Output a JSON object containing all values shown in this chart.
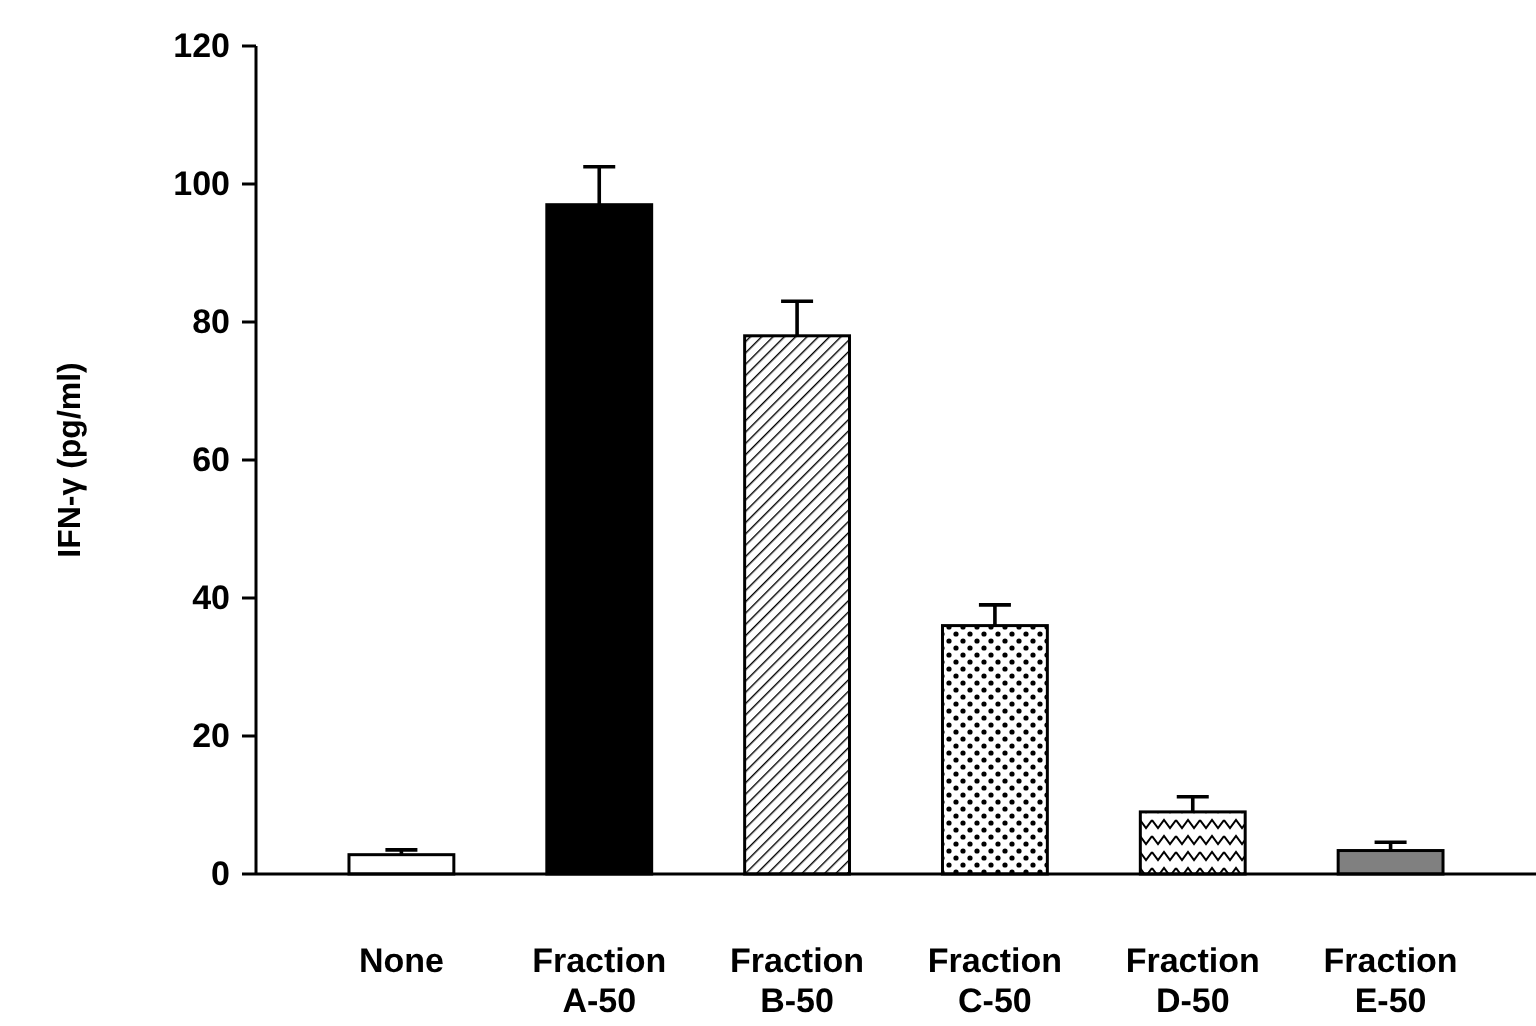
{
  "chart_data": {
    "type": "bar",
    "ylabel": "IFN-γ (pg/ml)",
    "categories": [
      "None",
      "Fraction A-50",
      "Fraction B-50",
      "Fraction C-50",
      "Fraction D-50",
      "Fraction E-50"
    ],
    "values": [
      2.8,
      97,
      78,
      36,
      9,
      3.4
    ],
    "errors": [
      0.7,
      5.5,
      5,
      3,
      2.2,
      1.2
    ],
    "colors": [
      "#ffffff",
      "#000000",
      "#000000",
      "#000000",
      "#000000",
      "#808080"
    ],
    "ylim": [
      0,
      120
    ],
    "yticks": [
      0,
      20,
      40,
      60,
      80,
      100,
      120
    ],
    "grid": false
  }
}
